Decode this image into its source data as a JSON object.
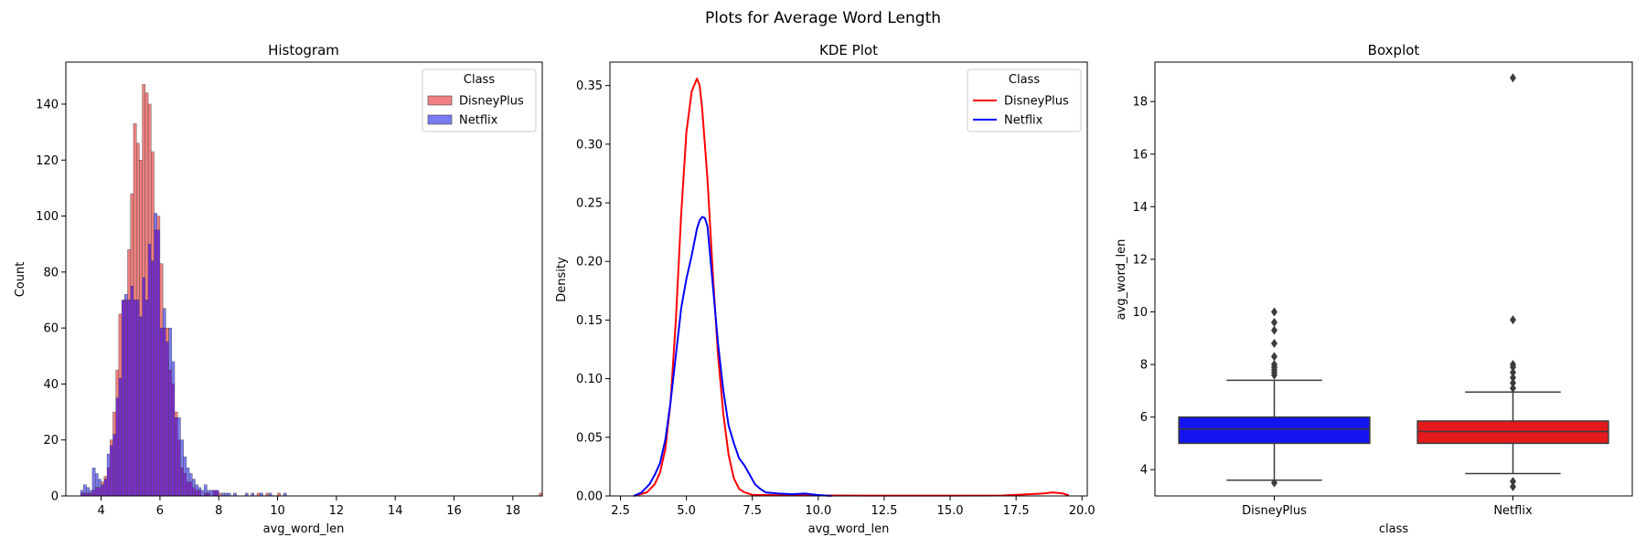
{
  "figure": {
    "suptitle": "Plots for Average Word Length"
  },
  "chart_data": [
    {
      "type": "bar",
      "subtype": "histogram",
      "title": "Histogram",
      "xlabel": "avg_word_len",
      "ylabel": "Count",
      "xlim": [
        2.8,
        19.0
      ],
      "ylim": [
        0,
        155
      ],
      "xticks": [
        "4",
        "6",
        "8",
        "10",
        "12",
        "14",
        "16",
        "18"
      ],
      "yticks": [
        "0",
        "20",
        "40",
        "60",
        "80",
        "100",
        "120",
        "140"
      ],
      "legend": {
        "title": "Class",
        "position": "top-right",
        "entries": [
          "DisneyPlus",
          "Netflix"
        ]
      },
      "colors": {
        "DisneyPlus": "#f08080",
        "Netflix": "#7b7bf0",
        "overlap": "#7a2fc8",
        "edge": "#444444"
      },
      "bin_width": 0.1,
      "series": [
        {
          "name": "DisneyPlus",
          "bins": [
            [
              3.3,
              1
            ],
            [
              3.4,
              1
            ],
            [
              3.5,
              1
            ],
            [
              3.6,
              1
            ],
            [
              3.7,
              2
            ],
            [
              3.8,
              3
            ],
            [
              3.9,
              3
            ],
            [
              4.0,
              5
            ],
            [
              4.1,
              7
            ],
            [
              4.2,
              10
            ],
            [
              4.3,
              20
            ],
            [
              4.4,
              30
            ],
            [
              4.5,
              45
            ],
            [
              4.6,
              65
            ],
            [
              4.7,
              70
            ],
            [
              4.8,
              70
            ],
            [
              4.9,
              88
            ],
            [
              5.0,
              108
            ],
            [
              5.1,
              133
            ],
            [
              5.2,
              126
            ],
            [
              5.3,
              120
            ],
            [
              5.4,
              147
            ],
            [
              5.5,
              144
            ],
            [
              5.6,
              140
            ],
            [
              5.7,
              123
            ],
            [
              5.8,
              95
            ],
            [
              5.9,
              100
            ],
            [
              6.0,
              83
            ],
            [
              6.1,
              60
            ],
            [
              6.2,
              60
            ],
            [
              6.3,
              45
            ],
            [
              6.4,
              40
            ],
            [
              6.5,
              30
            ],
            [
              6.6,
              20
            ],
            [
              6.7,
              10
            ],
            [
              6.8,
              8
            ],
            [
              6.9,
              5
            ],
            [
              7.0,
              5
            ],
            [
              7.1,
              3
            ],
            [
              7.2,
              2
            ],
            [
              7.3,
              2
            ],
            [
              7.5,
              1
            ],
            [
              7.6,
              1
            ],
            [
              7.8,
              2
            ],
            [
              7.9,
              2
            ],
            [
              8.0,
              1
            ],
            [
              9.3,
              1
            ],
            [
              9.6,
              1
            ],
            [
              10.0,
              1
            ],
            [
              18.9,
              1
            ]
          ]
        },
        {
          "name": "Netflix",
          "bins": [
            [
              3.3,
              2
            ],
            [
              3.4,
              4
            ],
            [
              3.5,
              3
            ],
            [
              3.6,
              2
            ],
            [
              3.7,
              10
            ],
            [
              3.8,
              8
            ],
            [
              3.9,
              6
            ],
            [
              4.0,
              4
            ],
            [
              4.1,
              6
            ],
            [
              4.2,
              15
            ],
            [
              4.3,
              18
            ],
            [
              4.4,
              22
            ],
            [
              4.5,
              35
            ],
            [
              4.6,
              42
            ],
            [
              4.7,
              70
            ],
            [
              4.8,
              72
            ],
            [
              4.9,
              70
            ],
            [
              5.0,
              75
            ],
            [
              5.1,
              70
            ],
            [
              5.2,
              70
            ],
            [
              5.3,
              64
            ],
            [
              5.4,
              78
            ],
            [
              5.5,
              70
            ],
            [
              5.6,
              90
            ],
            [
              5.7,
              84
            ],
            [
              5.8,
              101
            ],
            [
              5.9,
              95
            ],
            [
              6.0,
              60
            ],
            [
              6.1,
              67
            ],
            [
              6.2,
              55
            ],
            [
              6.3,
              60
            ],
            [
              6.4,
              48
            ],
            [
              6.5,
              28
            ],
            [
              6.6,
              28
            ],
            [
              6.7,
              20
            ],
            [
              6.8,
              14
            ],
            [
              6.9,
              10
            ],
            [
              7.0,
              8
            ],
            [
              7.1,
              6
            ],
            [
              7.2,
              4
            ],
            [
              7.3,
              3
            ],
            [
              7.4,
              2
            ],
            [
              7.5,
              4
            ],
            [
              7.6,
              2
            ],
            [
              7.7,
              2
            ],
            [
              7.8,
              2
            ],
            [
              7.9,
              2
            ],
            [
              8.1,
              1
            ],
            [
              8.2,
              1
            ],
            [
              8.3,
              1
            ],
            [
              8.5,
              1
            ],
            [
              8.9,
              1
            ],
            [
              9.1,
              1
            ],
            [
              9.4,
              1
            ],
            [
              9.7,
              1
            ],
            [
              10.2,
              1
            ]
          ]
        }
      ]
    },
    {
      "type": "line",
      "subtype": "kde",
      "title": "KDE Plot",
      "xlabel": "avg_word_len",
      "ylabel": "Density",
      "xlim": [
        2.1,
        20.2
      ],
      "ylim": [
        0,
        0.37
      ],
      "xticks": [
        "2.5",
        "5.0",
        "7.5",
        "10.0",
        "12.5",
        "15.0",
        "17.5",
        "20.0"
      ],
      "yticks": [
        "0.00",
        "0.05",
        "0.10",
        "0.15",
        "0.20",
        "0.25",
        "0.30",
        "0.35"
      ],
      "legend": {
        "title": "Class",
        "position": "top-right",
        "entries": [
          "DisneyPlus",
          "Netflix"
        ]
      },
      "colors": {
        "DisneyPlus": "#ff0000",
        "Netflix": "#0000ff"
      },
      "series": [
        {
          "name": "DisneyPlus",
          "x": [
            3.0,
            3.5,
            3.8,
            4.0,
            4.2,
            4.4,
            4.6,
            4.8,
            5.0,
            5.2,
            5.4,
            5.5,
            5.6,
            5.8,
            6.0,
            6.2,
            6.4,
            6.6,
            6.8,
            7.0,
            7.2,
            7.5,
            8.0,
            9.0,
            10.0,
            12.0,
            15.0,
            17.0,
            18.5,
            18.9,
            19.3,
            19.5
          ],
          "y": [
            0.0,
            0.003,
            0.01,
            0.02,
            0.04,
            0.08,
            0.15,
            0.24,
            0.31,
            0.345,
            0.356,
            0.35,
            0.33,
            0.27,
            0.19,
            0.12,
            0.07,
            0.035,
            0.015,
            0.006,
            0.003,
            0.001,
            0.0008,
            0.0005,
            0.0004,
            0.0003,
            0.0003,
            0.0004,
            0.002,
            0.003,
            0.002,
            0.0005
          ]
        },
        {
          "name": "Netflix",
          "x": [
            3.0,
            3.3,
            3.6,
            3.8,
            4.0,
            4.2,
            4.4,
            4.6,
            4.8,
            5.0,
            5.2,
            5.4,
            5.5,
            5.6,
            5.7,
            5.8,
            6.0,
            6.2,
            6.4,
            6.6,
            6.8,
            7.0,
            7.2,
            7.4,
            7.6,
            7.8,
            8.0,
            8.5,
            9.0,
            9.5,
            10.0,
            10.5
          ],
          "y": [
            0.0,
            0.003,
            0.01,
            0.018,
            0.028,
            0.048,
            0.08,
            0.12,
            0.16,
            0.185,
            0.205,
            0.228,
            0.235,
            0.238,
            0.237,
            0.23,
            0.18,
            0.13,
            0.09,
            0.06,
            0.045,
            0.032,
            0.026,
            0.018,
            0.01,
            0.006,
            0.003,
            0.002,
            0.0015,
            0.002,
            0.0008,
            0.0
          ]
        }
      ]
    },
    {
      "type": "box",
      "title": "Boxplot",
      "xlabel": "class",
      "ylabel": "avg_word_len",
      "ylim": [
        3.0,
        19.5
      ],
      "categories": [
        "DisneyPlus",
        "Netflix"
      ],
      "yticks": [
        "4",
        "6",
        "8",
        "10",
        "12",
        "14",
        "16",
        "18"
      ],
      "colors": {
        "DisneyPlus": "#1414f0",
        "Netflix": "#e41a1c",
        "lines": "#3c3c3c"
      },
      "series": [
        {
          "name": "DisneyPlus",
          "whisker_low": 3.6,
          "q1": 5.0,
          "median": 5.55,
          "q3": 6.0,
          "whisker_high": 7.4,
          "outliers": [
            3.5,
            7.6,
            7.7,
            7.8,
            7.9,
            8.0,
            8.3,
            8.8,
            9.3,
            9.6,
            10.0
          ]
        },
        {
          "name": "Netflix",
          "whisker_low": 3.85,
          "q1": 5.0,
          "median": 5.45,
          "q3": 5.85,
          "whisker_high": 6.95,
          "outliers": [
            3.35,
            3.55,
            7.1,
            7.3,
            7.5,
            7.7,
            7.9,
            8.0,
            9.7,
            18.9
          ]
        }
      ]
    }
  ]
}
